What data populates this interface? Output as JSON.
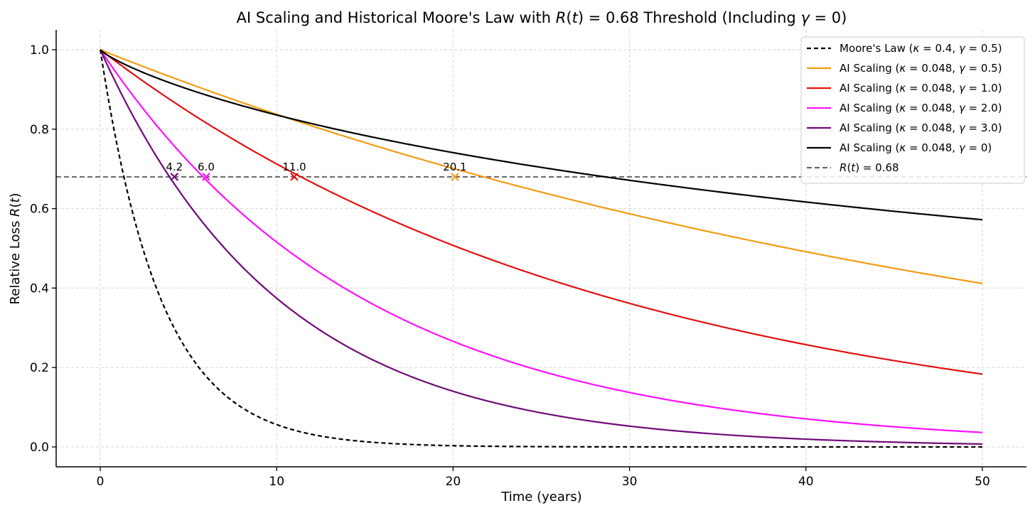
{
  "chart_data": {
    "type": "line",
    "title_parts": [
      "AI Scaling and Historical Moore's Law with ",
      "R",
      "(",
      "t",
      ") = 0.68 Threshold (Including ",
      "γ",
      " = 0)"
    ],
    "xlabel": "Time (years)",
    "ylabel_parts": [
      "Relative Loss ",
      "R",
      "(",
      "t",
      ")"
    ],
    "xlim": [
      -2.5,
      52.5
    ],
    "ylim": [
      -0.05,
      1.05
    ],
    "xticks": [
      0,
      10,
      20,
      30,
      40,
      50
    ],
    "xtick_labels": [
      "0",
      "10",
      "20",
      "30",
      "40",
      "50"
    ],
    "yticks": [
      0.0,
      0.2,
      0.4,
      0.6,
      0.8,
      1.0
    ],
    "ytick_labels": [
      "0.0",
      "0.2",
      "0.4",
      "0.6",
      "0.8",
      "1.0"
    ],
    "grid": true,
    "legend_position": "top-right",
    "t_range": [
      0,
      50
    ],
    "threshold": {
      "value": 0.68,
      "color": "#666666",
      "legend_parts": [
        "R",
        "(",
        "t",
        ") = 0.68"
      ]
    },
    "series": [
      {
        "name": "Moore's Law",
        "kappa": 0.4,
        "gamma": 0.5,
        "color": "#000000",
        "dashed": true,
        "legend_parts": [
          "Moore's Law (",
          "κ",
          " = 0.4, ",
          "γ",
          " = 0.5)"
        ]
      },
      {
        "name": "AI Scaling γ=0.5",
        "kappa": 0.048,
        "gamma": 0.5,
        "color": "#f39c12",
        "dashed": false,
        "legend_parts": [
          "AI Scaling (",
          "κ",
          " = 0.048, ",
          "γ",
          " = 0.5)"
        ]
      },
      {
        "name": "AI Scaling γ=1.0",
        "kappa": 0.048,
        "gamma": 1.0,
        "color": "#e41010",
        "dashed": false,
        "legend_parts": [
          "AI Scaling (",
          "κ",
          " = 0.048, ",
          "γ",
          " = 1.0)"
        ]
      },
      {
        "name": "AI Scaling γ=2.0",
        "kappa": 0.048,
        "gamma": 2.0,
        "color": "#ff10ff",
        "dashed": false,
        "legend_parts": [
          "AI Scaling (",
          "κ",
          " = 0.048, ",
          "γ",
          " = 2.0)"
        ]
      },
      {
        "name": "AI Scaling γ=3.0",
        "kappa": 0.048,
        "gamma": 3.0,
        "color": "#6f0a78",
        "dashed": false,
        "legend_parts": [
          "AI Scaling (",
          "κ",
          " = 0.048, ",
          "γ",
          " = 3.0)"
        ]
      },
      {
        "name": "AI Scaling γ=0",
        "kappa": 0.048,
        "gamma": 0,
        "color": "#000000",
        "dashed": false,
        "legend_parts": [
          "AI Scaling (",
          "κ",
          " = 0.048, ",
          "γ",
          " = 0)"
        ]
      }
    ],
    "crossings": [
      {
        "x": 4.2,
        "label": "4.2",
        "color": "#6f0a78"
      },
      {
        "x": 6.0,
        "label": "6.0",
        "color": "#ff10ff"
      },
      {
        "x": 11.0,
        "label": "11.0",
        "color": "#e41010"
      },
      {
        "x": 20.1,
        "label": "20.1",
        "color": "#f39c12"
      }
    ]
  }
}
